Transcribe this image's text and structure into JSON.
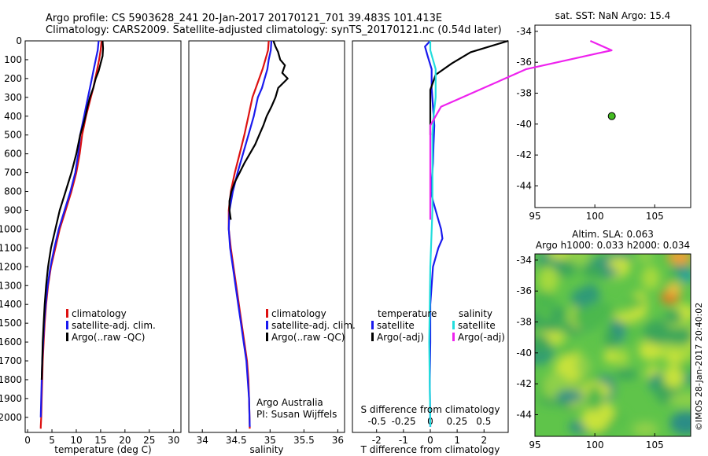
{
  "header": {
    "line1": "Argo profile: CS 5903628_241 20-Jan-2017 20170121_701 39.483S 101.413E",
    "line2": "Climatology: CARS2009. Satellite-adjusted climatology: synTS_20170121.nc (0.54d later)"
  },
  "colors": {
    "climatology": "#dd1111",
    "satellite": "#1a1aee",
    "argo": "#000000",
    "sat_salinity": "#22dddd",
    "argo_salinity": "#ee22ee",
    "float_marker": "#44bb22"
  },
  "chart_data": [
    {
      "id": "temperature",
      "type": "line",
      "xlabel": "temperature (deg C)",
      "ylabel": "",
      "xlim": [
        -0.5,
        31.5
      ],
      "ylim": [
        2080,
        0
      ],
      "xticks": [
        0,
        5,
        10,
        15,
        20,
        25,
        30
      ],
      "yticks": [
        0,
        100,
        200,
        300,
        400,
        500,
        600,
        700,
        800,
        900,
        1000,
        1100,
        1200,
        1300,
        1400,
        1500,
        1600,
        1700,
        1800,
        1900,
        2000
      ],
      "legend": {
        "position": "lower-middle",
        "entries": [
          "climatology",
          "satellite-adj. clim.",
          "Argo(..raw -QC)"
        ]
      },
      "series": [
        {
          "name": "climatology",
          "color": "#dd1111",
          "x": [
            15.2,
            15.0,
            14.7,
            14.3,
            13.9,
            13.5,
            13.0,
            12.5,
            12.0,
            11.6,
            11.2,
            10.7,
            10.0,
            9.0,
            7.8,
            6.6,
            5.7,
            4.8,
            4.2,
            3.8,
            3.5,
            3.3,
            3.1,
            3.0,
            2.9,
            2.8,
            2.7,
            2.7
          ],
          "y": [
            0,
            50,
            100,
            150,
            200,
            250,
            300,
            350,
            400,
            450,
            500,
            600,
            700,
            800,
            900,
            1000,
            1100,
            1200,
            1300,
            1400,
            1500,
            1600,
            1700,
            1800,
            1900,
            2000,
            2050,
            2060
          ]
        },
        {
          "name": "satellite-adj. clim.",
          "color": "#1a1aee",
          "x": [
            14.6,
            14.4,
            14.0,
            13.6,
            13.2,
            12.8,
            12.4,
            12.0,
            11.6,
            11.2,
            10.8,
            10.4,
            9.8,
            8.8,
            7.6,
            6.4,
            5.5,
            4.7,
            4.1,
            3.7,
            3.4,
            3.2,
            3.0,
            2.9,
            2.8,
            2.7
          ],
          "y": [
            0,
            50,
            100,
            150,
            200,
            250,
            300,
            350,
            400,
            450,
            500,
            600,
            700,
            800,
            900,
            1000,
            1100,
            1200,
            1300,
            1400,
            1500,
            1600,
            1700,
            1800,
            1900,
            2000
          ]
        },
        {
          "name": "Argo(..raw -QC)",
          "color": "#000000",
          "x": [
            15.4,
            15.5,
            15.4,
            15.0,
            14.6,
            14.0,
            13.5,
            12.8,
            12.3,
            11.9,
            11.4,
            10.8,
            10.0,
            9.0,
            7.8,
            6.6,
            5.7,
            4.8,
            4.2,
            3.8,
            3.5,
            3.3,
            3.1,
            3.0,
            2.9
          ],
          "y": [
            0,
            40,
            80,
            120,
            160,
            200,
            250,
            300,
            350,
            400,
            450,
            500,
            600,
            700,
            800,
            900,
            1000,
            1100,
            1200,
            1300,
            1400,
            1500,
            1600,
            1700,
            1800
          ]
        }
      ]
    },
    {
      "id": "salinity",
      "type": "line",
      "xlabel": "salinity",
      "ylabel": "",
      "xlim": [
        33.8,
        36.1
      ],
      "ylim": [
        2080,
        0
      ],
      "xticks": [
        34,
        34.5,
        35,
        35.5,
        36
      ],
      "xticklabels": [
        "34",
        "34.5",
        "35",
        "35.5",
        "36"
      ],
      "legend": {
        "position": "lower-right",
        "entries": [
          "climatology",
          "satellite-adj. clim.",
          "Argo(..raw -QC)"
        ]
      },
      "annotation": [
        "Argo Australia",
        "PI: Susan Wijffels"
      ],
      "series": [
        {
          "name": "climatology",
          "color": "#dd1111",
          "x": [
            34.98,
            34.97,
            34.93,
            34.89,
            34.84,
            34.79,
            34.74,
            34.68,
            34.62,
            34.55,
            34.48,
            34.42,
            34.39,
            34.39,
            34.42,
            34.46,
            34.5,
            34.54,
            34.58,
            34.62,
            34.66,
            34.68,
            34.69,
            34.7
          ],
          "y": [
            0,
            50,
            100,
            150,
            200,
            250,
            300,
            400,
            500,
            600,
            700,
            800,
            900,
            1000,
            1100,
            1200,
            1300,
            1400,
            1500,
            1600,
            1700,
            1800,
            1900,
            2060
          ]
        },
        {
          "name": "satellite-adj. clim.",
          "color": "#1a1aee",
          "x": [
            35.02,
            35.01,
            34.98,
            34.96,
            34.92,
            34.88,
            34.82,
            34.76,
            34.68,
            34.6,
            34.52,
            34.45,
            34.4,
            34.39,
            34.41,
            34.45,
            34.49,
            34.53,
            34.57,
            34.61,
            34.65,
            34.67,
            34.69,
            34.7
          ],
          "y": [
            0,
            50,
            100,
            150,
            200,
            250,
            300,
            400,
            500,
            600,
            700,
            800,
            900,
            1000,
            1100,
            1200,
            1300,
            1400,
            1500,
            1600,
            1700,
            1800,
            1900,
            2050
          ]
        },
        {
          "name": "Argo(..raw -QC)",
          "color": "#000000",
          "x": [
            35.05,
            35.08,
            35.12,
            35.15,
            35.22,
            35.18,
            35.26,
            35.12,
            35.08,
            35.02,
            34.95,
            34.9,
            34.84,
            34.78,
            34.7,
            34.62,
            34.55,
            34.48,
            34.43,
            34.4,
            34.4,
            34.42
          ],
          "y": [
            0,
            30,
            60,
            100,
            130,
            170,
            200,
            250,
            300,
            350,
            400,
            450,
            500,
            550,
            600,
            650,
            700,
            750,
            800,
            850,
            900,
            950
          ]
        }
      ]
    },
    {
      "id": "difference",
      "type": "line",
      "xlabel": "T difference from climatology",
      "x2label": "S difference from climatology",
      "xlim": [
        -2.9,
        2.9
      ],
      "x2lim": [
        -0.73,
        0.73
      ],
      "ylim": [
        2080,
        0
      ],
      "xticks": [
        -2,
        -1,
        0,
        1,
        2
      ],
      "xticklabels": [
        "-2",
        "-1",
        "0",
        "1",
        "2"
      ],
      "x2ticks": [
        -0.5,
        -0.25,
        0,
        0.25,
        0.5
      ],
      "x2ticklabels": [
        "-0.5",
        "-0.25",
        "0",
        "0.25",
        "0.5"
      ],
      "legend": {
        "position": "lower-middle",
        "groups": [
          {
            "title": "temperature",
            "entries": [
              "satellite",
              "Argo(-adj)"
            ]
          },
          {
            "title": "salinity",
            "entries": [
              "satellite",
              "Argo(-adj)"
            ]
          }
        ]
      },
      "series": [
        {
          "name": "temperature satellite",
          "color": "#1a1aee",
          "x": [
            0.0,
            -0.2,
            -0.1,
            0.05,
            0.05,
            0.1,
            0.15,
            0.12,
            0.1,
            0.05,
            0.02,
            0.1,
            0.2,
            0.3,
            0.4,
            0.45,
            0.3,
            0.1,
            0.0,
            0.0,
            -0.02,
            0.0
          ],
          "y": [
            0,
            30,
            80,
            150,
            250,
            350,
            450,
            550,
            650,
            750,
            800,
            850,
            900,
            950,
            1000,
            1050,
            1100,
            1200,
            1400,
            1600,
            1800,
            2050
          ]
        },
        {
          "name": "temperature Argo(-adj)",
          "color": "#000000",
          "x": [
            2.9,
            1.5,
            0.8,
            0.2,
            0.0,
            0.0,
            0.0
          ],
          "y": [
            0,
            60,
            120,
            180,
            260,
            400,
            500
          ]
        },
        {
          "name": "salinity satellite",
          "color": "#22dddd",
          "x": [
            0.0,
            0.0,
            0.05,
            0.05,
            0.03,
            0.02,
            0.02,
            0.02,
            0.0,
            -0.01,
            0.0
          ],
          "y": [
            0,
            50,
            150,
            300,
            400,
            500,
            700,
            900,
            1200,
            1600,
            2050
          ]
        },
        {
          "name": "salinity Argo(-adj)",
          "color": "#ee22ee",
          "x": [
            1.5,
            1.7,
            1.3,
            0.9,
            0.5,
            0.1,
            0.0,
            0.0,
            0.0
          ],
          "y": [
            0,
            50,
            100,
            150,
            250,
            350,
            450,
            650,
            950
          ]
        }
      ]
    },
    {
      "id": "position-map",
      "type": "scatter",
      "title": "sat. SST: NaN Argo: 15.4",
      "xlim": [
        95,
        108
      ],
      "ylim": [
        -45.4,
        -33.6
      ],
      "xticks": [
        95,
        100,
        105
      ],
      "yticks": [
        -34,
        -36,
        -38,
        -40,
        -42,
        -44
      ],
      "points": [
        {
          "x": 101.413,
          "y": -39.483
        }
      ]
    },
    {
      "id": "sla-map",
      "type": "heatmap",
      "title": "Altim. SLA: 0.063",
      "subtitle": "Argo h1000: 0.033 h2000: 0.034",
      "xlim": [
        95,
        108
      ],
      "ylim": [
        -45.4,
        -33.6
      ],
      "xticks": [
        95,
        100,
        105
      ],
      "yticks": [
        -34,
        -36,
        -38,
        -40,
        -42,
        -44
      ],
      "side_label": "©IMOS 28-Jan-2017 20:40:02"
    }
  ]
}
